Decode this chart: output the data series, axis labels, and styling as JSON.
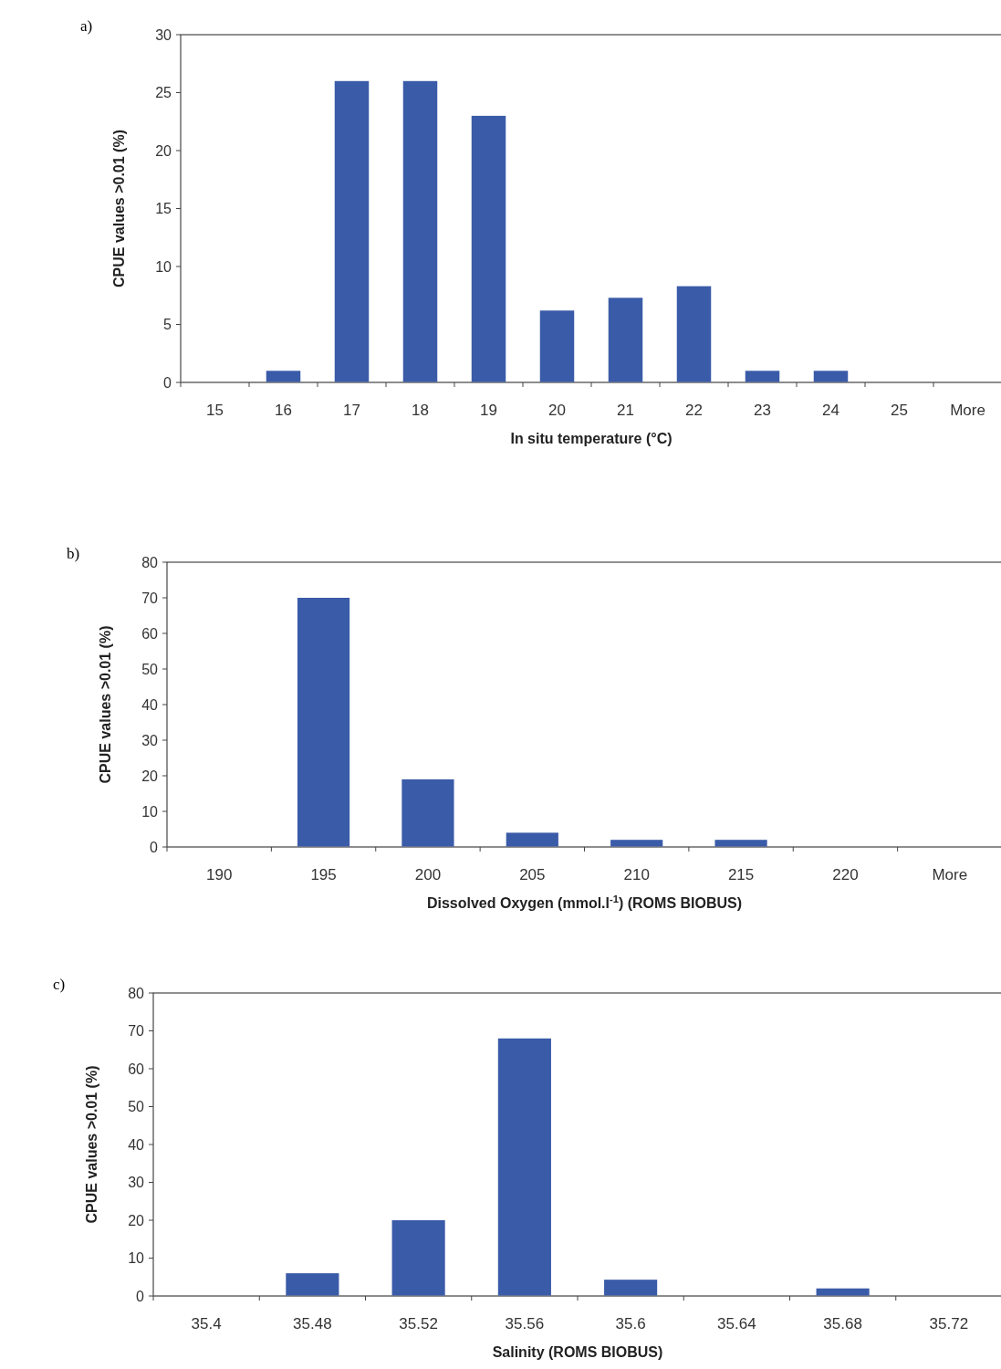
{
  "chart_data": [
    {
      "type": "bar",
      "title": "a)",
      "xlabel": "In situ temperature (°C)",
      "ylabel": "CPUE values >0.01 (%)",
      "categories": [
        "15",
        "16",
        "17",
        "18",
        "19",
        "20",
        "21",
        "22",
        "23",
        "24",
        "25",
        "More"
      ],
      "values": [
        0,
        1,
        26,
        26,
        23,
        6.2,
        7.3,
        8.3,
        1,
        1,
        0,
        0
      ],
      "color": "#3a5ba8",
      "ylim": [
        0,
        30
      ],
      "yticks": [
        0,
        5,
        10,
        15,
        20,
        25,
        30
      ],
      "grid": false
    },
    {
      "type": "bar",
      "title": "b)",
      "xlabel": "Dissolved Oxygen (mmol.l$^{-1}$) (ROMS BIOBUS)",
      "ylabel": "CPUE values >0.01 (%)",
      "categories": [
        "190",
        "195",
        "200",
        "205",
        "210",
        "215",
        "220",
        "More"
      ],
      "values": [
        0,
        70,
        19,
        4,
        2,
        2,
        0,
        0
      ],
      "color": "#3a5ba8",
      "ylim": [
        0,
        80
      ],
      "yticks": [
        0,
        10,
        20,
        30,
        40,
        50,
        60,
        70,
        80
      ],
      "grid": false
    },
    {
      "type": "bar",
      "title": "c)",
      "xlabel": "Salinity (ROMS BIOBUS)",
      "ylabel": "CPUE values >0.01 (%)",
      "categories": [
        "35.4",
        "35.48",
        "35.52",
        "35.56",
        "35.6",
        "35.64",
        "35.68",
        "35.72"
      ],
      "values": [
        0,
        6,
        20,
        68,
        4.3,
        0,
        2,
        0
      ],
      "color": "#3a5ba8",
      "ylim": [
        0,
        80
      ],
      "yticks": [
        0,
        10,
        20,
        30,
        40,
        50,
        60,
        70,
        80
      ],
      "grid": false
    }
  ]
}
